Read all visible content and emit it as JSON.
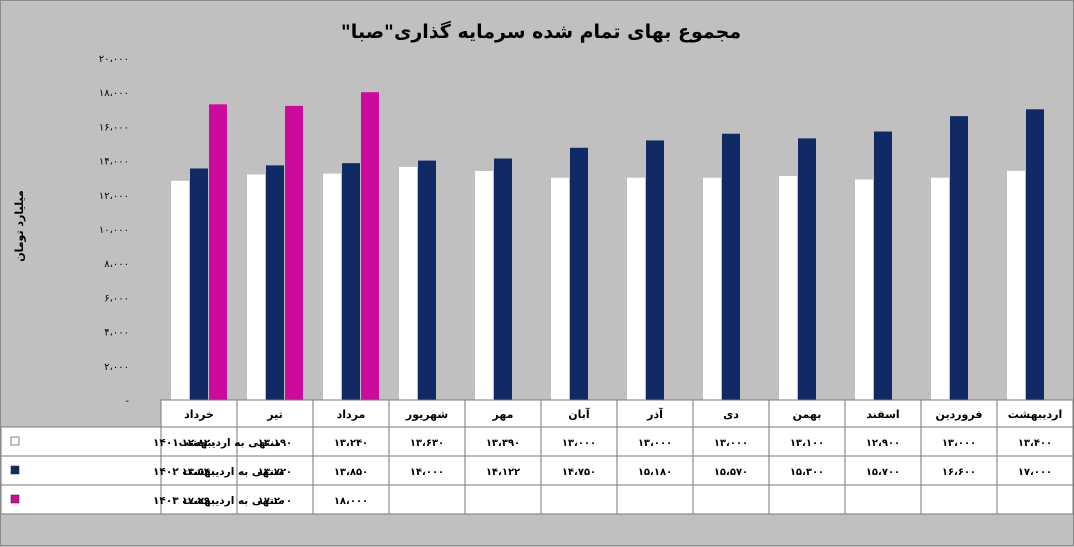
{
  "chart_data": {
    "type": "bar",
    "title": "مجموع بهای تمام شده سرمایه گذاری\"صبا\"",
    "ylabel": "میلیارد تومان",
    "ylim": [
      0,
      20000
    ],
    "y_tick_labels": [
      "-",
      "۲،۰۰۰",
      "۴،۰۰۰",
      "۶،۰۰۰",
      "۸،۰۰۰",
      "۱۰،۰۰۰",
      "۱۲،۰۰۰",
      "۱۴،۰۰۰",
      "۱۶،۰۰۰",
      "۱۸،۰۰۰",
      "۲۰،۰۰۰"
    ],
    "categories": [
      "خرداد",
      "تیر",
      "مرداد",
      "شهریور",
      "مهر",
      "آبان",
      "آذر",
      "دی",
      "بهمن",
      "اسفند",
      "فروردین",
      "اردیبهشت"
    ],
    "series": [
      {
        "name": "منتهی به اردیبهشت۱۴۰۱",
        "color": "#ffffff",
        "values": [
          12820,
          13190,
          13240,
          13630,
          13390,
          13000,
          13000,
          13000,
          13100,
          12900,
          13000,
          13400
        ],
        "labels": [
          "۱۲،۸۲۰",
          "۱۳،۱۹۰",
          "۱۳،۲۴۰",
          "۱۳،۶۳۰",
          "۱۳،۳۹۰",
          "۱۳،۰۰۰",
          "۱۳،۰۰۰",
          "۱۳،۰۰۰",
          "۱۳،۱۰۰",
          "۱۲،۹۰۰",
          "۱۳،۰۰۰",
          "۱۳،۴۰۰"
        ]
      },
      {
        "name": "منتهی به اردیبهشت ۱۴۰۲",
        "color": "#102a63",
        "values": [
          13540,
          13720,
          13850,
          14000,
          14122,
          14750,
          15180,
          15570,
          15300,
          15700,
          16600,
          17000
        ],
        "labels": [
          "۱۳،۵۴۰",
          "۱۳،۷۲۰",
          "۱۳،۸۵۰",
          "۱۴،۰۰۰",
          "۱۴،۱۲۲",
          "۱۴،۷۵۰",
          "۱۵،۱۸۰",
          "۱۵،۵۷۰",
          "۱۵،۳۰۰",
          "۱۵،۷۰۰",
          "۱۶،۶۰۰",
          "۱۷،۰۰۰"
        ]
      },
      {
        "name": "منتهی به اردیبهشت ۱۴۰۳",
        "color": "#cc0a9d",
        "values": [
          17290,
          17200,
          18000,
          null,
          null,
          null,
          null,
          null,
          null,
          null,
          null,
          null
        ],
        "labels": [
          "۱۷،۲۹۰",
          "۱۷،۲۰۰",
          "۱۸،۰۰۰",
          "",
          "",
          "",
          "",
          "",
          "",
          "",
          "",
          ""
        ]
      }
    ],
    "grid": false,
    "legend": "data-table-left"
  }
}
